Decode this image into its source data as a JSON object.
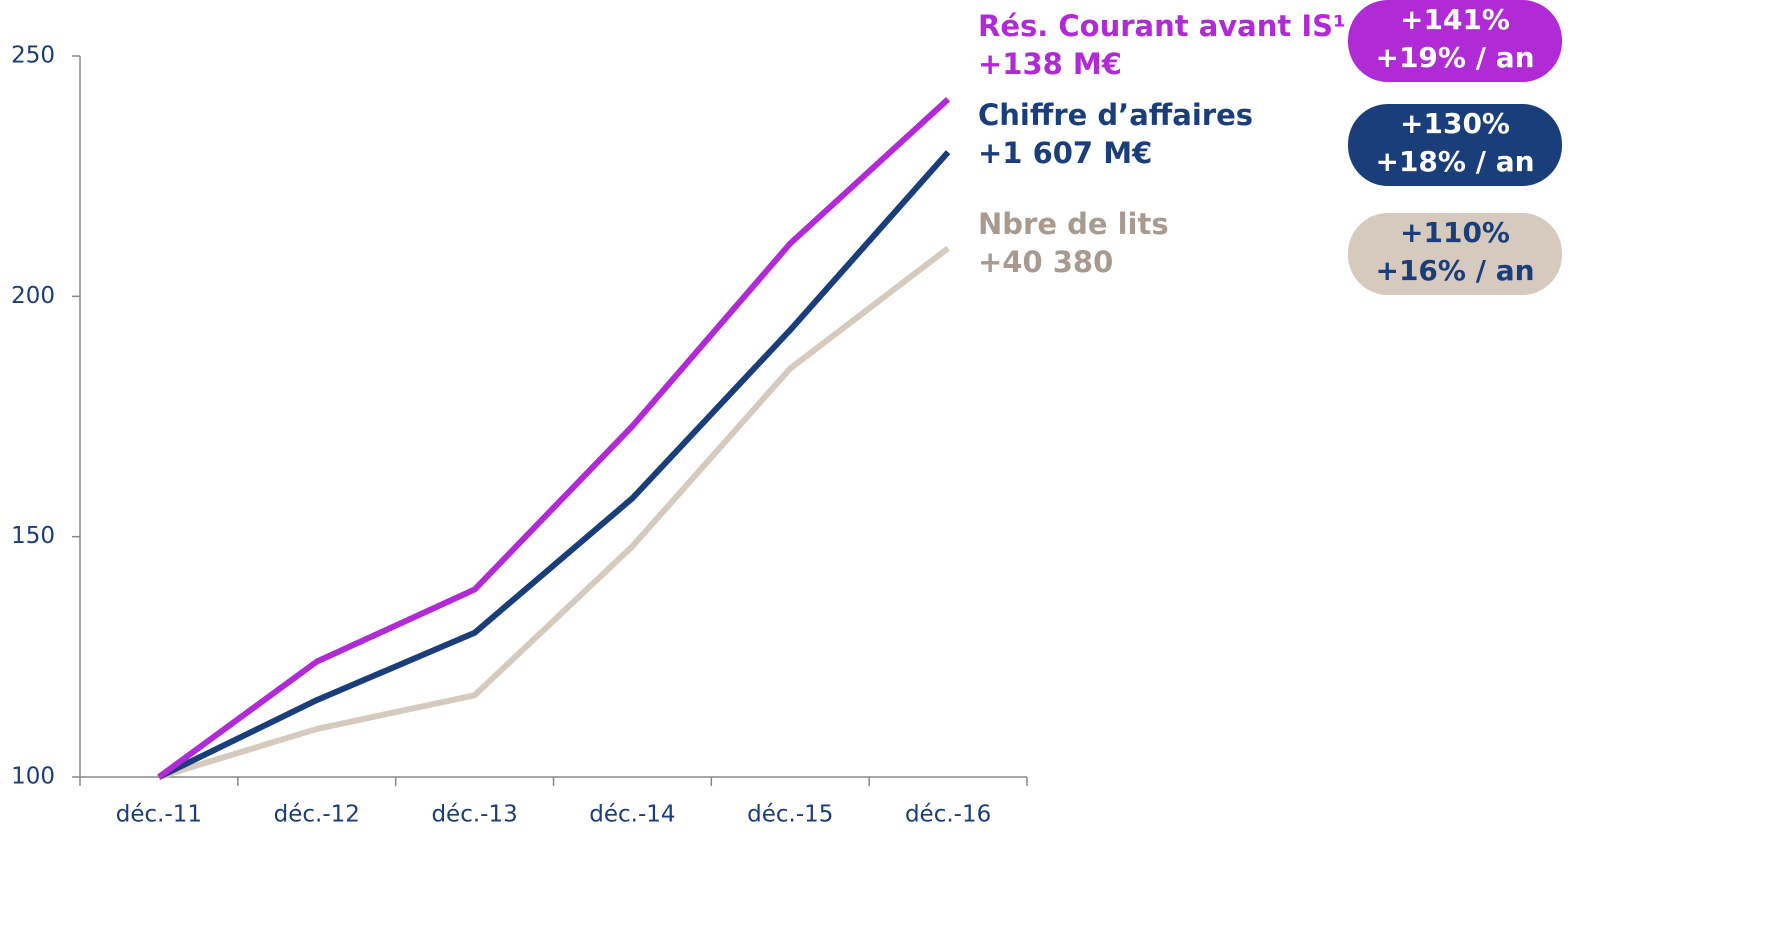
{
  "chart_data": {
    "type": "line",
    "categories": [
      "déc.-11",
      "déc.-12",
      "déc.-13",
      "déc.-14",
      "déc.-15",
      "déc.-16"
    ],
    "series": [
      {
        "name": "Rés. Courant avant IS¹",
        "total_change": "+138 M€",
        "growth": "+141%",
        "annual_growth": "+19% / an",
        "color": "#b02ad6",
        "badge_text_color": "#ffffff",
        "values": [
          100,
          124,
          139,
          173,
          211,
          241
        ]
      },
      {
        "name": "Chiffre d’affaires",
        "total_change": "+1 607 M€",
        "growth": "+130%",
        "annual_growth": "+18% / an",
        "color": "#1a3e7a",
        "badge_text_color": "#ffffff",
        "values": [
          100,
          116,
          130,
          158,
          193,
          230
        ]
      },
      {
        "name": "Nbre de lits",
        "total_change": "+40 380",
        "growth": "+110%",
        "annual_growth": "+16% / an",
        "color": "#d6c9bd",
        "label_color": "#a89a8e",
        "badge_text_color": "#1a3e7a",
        "values": [
          100,
          110,
          117,
          148,
          185,
          210
        ]
      }
    ],
    "ylim": [
      100,
      250
    ],
    "yticks": [
      100,
      150,
      200,
      250
    ]
  }
}
